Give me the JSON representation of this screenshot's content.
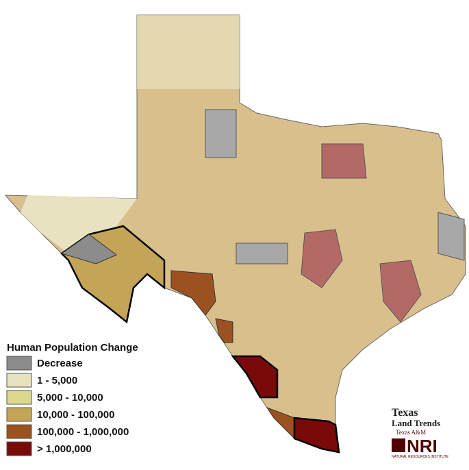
{
  "legend": {
    "title": "Human Population Change",
    "items": [
      {
        "label": "Decrease",
        "color": "#8c8c8c"
      },
      {
        "label": "1 - 5,000",
        "color": "#e8e2c0"
      },
      {
        "label": "5,000 - 10,000",
        "color": "#dcd98e"
      },
      {
        "label": "10,000 - 100,000",
        "color": "#c4a456"
      },
      {
        "label": "100,000 - 1,000,000",
        "color": "#9c5220"
      },
      {
        "label": "> 1,000,000",
        "color": "#7a0a0a"
      }
    ]
  },
  "logo": {
    "line1": "Texas",
    "line2": "Land Trends",
    "line3": "Texas A&M",
    "mark": "NRI",
    "caption": "NATURAL RESOURCES INSTITUTE"
  }
}
